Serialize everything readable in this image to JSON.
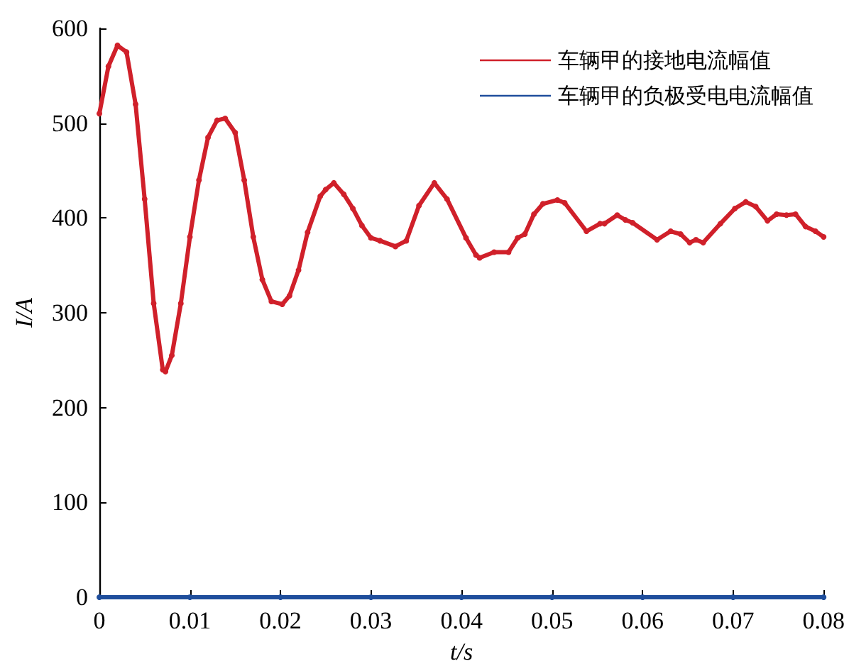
{
  "chart_data": {
    "type": "line",
    "xlabel": "t/s",
    "ylabel": "I/A",
    "xlim": [
      0,
      0.08
    ],
    "ylim": [
      0,
      600
    ],
    "xticks": [
      0,
      0.01,
      0.02,
      0.03,
      0.04,
      0.05,
      0.06,
      0.07,
      0.08
    ],
    "yticks": [
      0,
      100,
      200,
      300,
      400,
      500,
      600
    ],
    "grid": false,
    "legend": "top right",
    "marker": "circle",
    "line_style": "solid",
    "series": [
      {
        "name": "车辆甲的接地电流幅值",
        "color": "#d0202a",
        "x": [
          0,
          0.001,
          0.002,
          0.003,
          0.004,
          0.005,
          0.006,
          0.007,
          0.0073,
          0.008,
          0.009,
          0.01,
          0.011,
          0.012,
          0.013,
          0.0139,
          0.015,
          0.016,
          0.017,
          0.018,
          0.019,
          0.0202,
          0.021,
          0.022,
          0.023,
          0.0244,
          0.025,
          0.0259,
          0.027,
          0.028,
          0.029,
          0.03,
          0.031,
          0.0327,
          0.0339,
          0.0353,
          0.037,
          0.0384,
          0.0405,
          0.0416,
          0.042,
          0.0436,
          0.0452,
          0.0462,
          0.047,
          0.048,
          0.049,
          0.0506,
          0.0514,
          0.0538,
          0.0553,
          0.0558,
          0.0572,
          0.0581,
          0.0589,
          0.0616,
          0.0631,
          0.0642,
          0.0652,
          0.0659,
          0.0667,
          0.0686,
          0.0702,
          0.0714,
          0.0725,
          0.0738,
          0.0748,
          0.0759,
          0.0769,
          0.078,
          0.0791,
          0.08
        ],
        "values": [
          510,
          560,
          582,
          575,
          520,
          420,
          310,
          240,
          238,
          255,
          310,
          380,
          440,
          485,
          503,
          505,
          490,
          440,
          380,
          335,
          312,
          309,
          318,
          345,
          385,
          423,
          430,
          437,
          425,
          410,
          392,
          379,
          376,
          370,
          376,
          413,
          437,
          420,
          379,
          361,
          358,
          364,
          364,
          379,
          383,
          404,
          415,
          419,
          416,
          386,
          394,
          394,
          403,
          398,
          395,
          377,
          386,
          383,
          374,
          377,
          374,
          394,
          410,
          417,
          412,
          397,
          404,
          403,
          404,
          391,
          386,
          380
        ]
      },
      {
        "name": "车辆甲的负极受电电流幅值",
        "color": "#1f4e9c",
        "x": [
          0,
          0.01,
          0.02,
          0.03,
          0.04,
          0.05,
          0.06,
          0.07,
          0.08
        ],
        "values": [
          0,
          0,
          0,
          0,
          0,
          0,
          0,
          0,
          0
        ]
      }
    ]
  }
}
